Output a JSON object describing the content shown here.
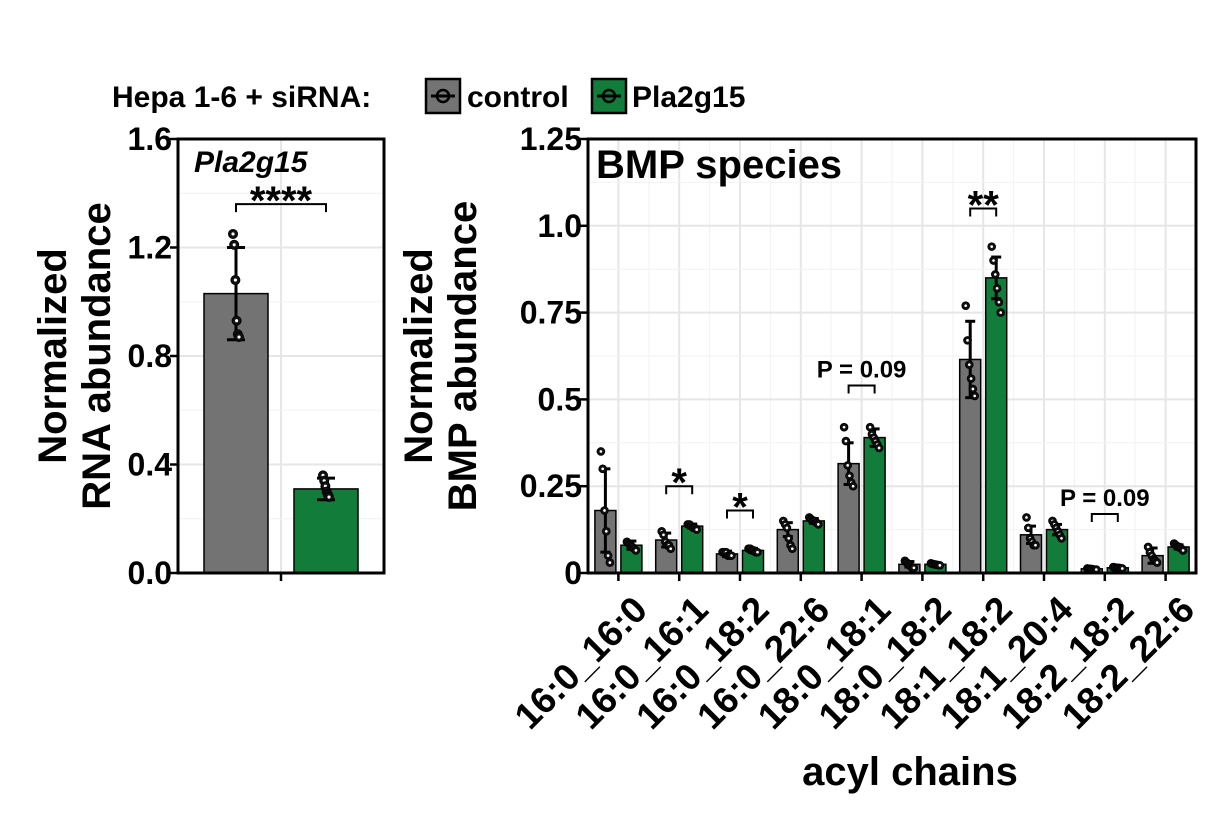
{
  "legend": {
    "prefix": "Hepa 1-6 + siRNA:",
    "items": [
      {
        "name": "control",
        "color": "#737373"
      },
      {
        "name": "Pla2g15",
        "color": "#127d3b"
      }
    ]
  },
  "chart_data": [
    {
      "type": "bar",
      "title": "Pla2g15",
      "ylabel_lines": [
        "Normalized",
        "RNA abundance"
      ],
      "ylim": [
        0,
        1.6
      ],
      "yticks": [
        "0.0",
        "0.4",
        "0.8",
        "1.2",
        "1.6"
      ],
      "grid": true,
      "categories": [
        ""
      ],
      "series": [
        {
          "name": "control",
          "color": "#737373",
          "values": [
            1.03
          ],
          "error": [
            0.17
          ],
          "points": [
            [
              1.25,
              1.21,
              1.08,
              0.93,
              0.88,
              0.87
            ]
          ]
        },
        {
          "name": "Pla2g15",
          "color": "#127d3b",
          "values": [
            0.31
          ],
          "error": [
            0.04
          ],
          "points": [
            [
              0.36,
              0.34,
              0.32,
              0.3,
              0.29,
              0.28
            ]
          ]
        }
      ],
      "significance": [
        {
          "category": 0,
          "label": "****",
          "y": 1.36
        }
      ]
    },
    {
      "type": "bar",
      "title": "BMP species",
      "ylabel_lines": [
        "Normalized",
        "BMP abundance"
      ],
      "xlabel": "acyl chains",
      "ylim": [
        0,
        1.25
      ],
      "yticks": [
        "0",
        "0.25",
        "0.5",
        "0.75",
        "1.0",
        "1.25"
      ],
      "grid": true,
      "categories": [
        "16:0_16:0",
        "16:0_16:1",
        "16:0_18:2",
        "16:0_22:6",
        "18:0_18:1",
        "18:0_18:2",
        "18:1_18:2",
        "18:1_20:4",
        "18:2_18:2",
        "18:2_22:6"
      ],
      "series": [
        {
          "name": "control",
          "color": "#737373",
          "values": [
            0.18,
            0.095,
            0.055,
            0.125,
            0.315,
            0.025,
            0.615,
            0.11,
            0.012,
            0.05
          ],
          "error": [
            0.12,
            0.02,
            0.008,
            0.02,
            0.06,
            0.008,
            0.11,
            0.025,
            0.003,
            0.022
          ],
          "points": [
            [
              0.35,
              0.3,
              0.18,
              0.12,
              0.05,
              0.03
            ],
            [
              0.12,
              0.11,
              0.09,
              0.08,
              0.08,
              0.07
            ],
            [
              0.06,
              0.06,
              0.06,
              0.05,
              0.05,
              0.05
            ],
            [
              0.15,
              0.14,
              0.13,
              0.1,
              0.08,
              0.07
            ],
            [
              0.42,
              0.38,
              0.31,
              0.28,
              0.26,
              0.25
            ],
            [
              0.035,
              0.03,
              0.025,
              0.02,
              0.015,
              0.015
            ],
            [
              0.77,
              0.67,
              0.6,
              0.56,
              0.53,
              0.51
            ],
            [
              0.16,
              0.13,
              0.1,
              0.09,
              0.08,
              0.08
            ],
            [
              0.013,
              0.012,
              0.012,
              0.011,
              0.01,
              0.01
            ],
            [
              0.075,
              0.06,
              0.05,
              0.04,
              0.035,
              0.03
            ]
          ]
        },
        {
          "name": "Pla2g15",
          "color": "#127d3b",
          "values": [
            0.08,
            0.135,
            0.065,
            0.15,
            0.39,
            0.025,
            0.85,
            0.125,
            0.015,
            0.075
          ],
          "error": [
            0.012,
            0.006,
            0.006,
            0.007,
            0.025,
            0.003,
            0.06,
            0.015,
            0.002,
            0.006
          ],
          "points": [
            [
              0.09,
              0.085,
              0.08,
              0.075,
              0.07,
              0.065
            ],
            [
              0.14,
              0.14,
              0.135,
              0.13,
              0.13,
              0.125
            ],
            [
              0.07,
              0.07,
              0.065,
              0.065,
              0.06,
              0.06
            ],
            [
              0.16,
              0.155,
              0.15,
              0.15,
              0.145,
              0.14
            ],
            [
              0.42,
              0.4,
              0.39,
              0.38,
              0.37,
              0.36
            ],
            [
              0.028,
              0.026,
              0.025,
              0.024,
              0.023,
              0.022
            ],
            [
              0.94,
              0.9,
              0.86,
              0.82,
              0.78,
              0.75
            ],
            [
              0.15,
              0.14,
              0.13,
              0.12,
              0.11,
              0.1
            ],
            [
              0.017,
              0.016,
              0.015,
              0.015,
              0.014,
              0.013
            ],
            [
              0.085,
              0.08,
              0.075,
              0.075,
              0.07,
              0.065
            ]
          ]
        }
      ],
      "significance": [
        {
          "category": 1,
          "label": "*",
          "y": 0.25
        },
        {
          "category": 2,
          "label": "*",
          "y": 0.18
        },
        {
          "category": 4,
          "label": "P = 0.09",
          "y": 0.54
        },
        {
          "category": 6,
          "label": "**",
          "y": 1.05
        },
        {
          "category": 8,
          "label": "P = 0.09",
          "y": 0.17
        }
      ]
    }
  ]
}
